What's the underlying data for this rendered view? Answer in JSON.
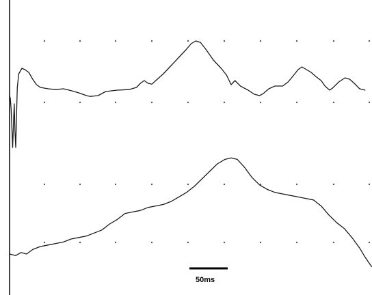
{
  "chart_data": {
    "type": "line",
    "title": "",
    "xlabel": "",
    "ylabel": "",
    "grid": "dotted",
    "legend": "none",
    "x_unit": "ms",
    "xlim": [
      0,
      500
    ],
    "scale_bar": {
      "value": 50,
      "unit": "ms",
      "label": "50ms"
    },
    "series": [
      {
        "values": [
          [
            0,
            0.0
          ],
          [
            1,
            -0.1
          ],
          [
            2,
            -0.5
          ],
          [
            3,
            -1.2
          ],
          [
            4,
            -1.9
          ],
          [
            5,
            -1.1
          ],
          [
            6,
            -0.3
          ],
          [
            7,
            -1.3
          ],
          [
            8,
            -1.9
          ],
          [
            9,
            -0.8
          ],
          [
            10,
            0.3
          ],
          [
            12,
            0.8
          ],
          [
            16,
            1.0
          ],
          [
            20,
            0.95
          ],
          [
            25,
            0.85
          ],
          [
            30,
            0.6
          ],
          [
            35,
            0.4
          ],
          [
            40,
            0.3
          ],
          [
            50,
            0.25
          ],
          [
            60,
            0.22
          ],
          [
            70,
            0.25
          ],
          [
            80,
            0.18
          ],
          [
            90,
            0.1
          ],
          [
            100,
            0.0
          ],
          [
            105,
            -0.03
          ],
          [
            115,
            0.0
          ],
          [
            125,
            0.15
          ],
          [
            140,
            0.2
          ],
          [
            155,
            0.22
          ],
          [
            165,
            0.3
          ],
          [
            170,
            0.45
          ],
          [
            175,
            0.55
          ],
          [
            180,
            0.45
          ],
          [
            185,
            0.42
          ],
          [
            190,
            0.55
          ],
          [
            200,
            0.8
          ],
          [
            210,
            1.1
          ],
          [
            220,
            1.4
          ],
          [
            230,
            1.7
          ],
          [
            236,
            1.9
          ],
          [
            242,
            2.0
          ],
          [
            248,
            1.95
          ],
          [
            255,
            1.7
          ],
          [
            265,
            1.3
          ],
          [
            275,
            1.0
          ],
          [
            282,
            0.75
          ],
          [
            288,
            0.4
          ],
          [
            293,
            0.55
          ],
          [
            300,
            0.35
          ],
          [
            310,
            0.2
          ],
          [
            318,
            0.05
          ],
          [
            325,
            0.0
          ],
          [
            330,
            0.08
          ],
          [
            337,
            0.25
          ],
          [
            345,
            0.35
          ],
          [
            355,
            0.35
          ],
          [
            362,
            0.5
          ],
          [
            368,
            0.7
          ],
          [
            375,
            0.95
          ],
          [
            380,
            1.05
          ],
          [
            386,
            0.95
          ],
          [
            392,
            0.85
          ],
          [
            398,
            0.7
          ],
          [
            405,
            0.55
          ],
          [
            410,
            0.35
          ],
          [
            416,
            0.2
          ],
          [
            420,
            0.28
          ],
          [
            428,
            0.5
          ],
          [
            436,
            0.65
          ],
          [
            442,
            0.6
          ],
          [
            448,
            0.45
          ],
          [
            455,
            0.25
          ],
          [
            462,
            0.2
          ]
        ]
      },
      {
        "values": [
          [
            0,
            0.0
          ],
          [
            8,
            -0.05
          ],
          [
            15,
            0.05
          ],
          [
            22,
            0.0
          ],
          [
            30,
            0.15
          ],
          [
            40,
            0.25
          ],
          [
            50,
            0.3
          ],
          [
            60,
            0.35
          ],
          [
            70,
            0.4
          ],
          [
            80,
            0.5
          ],
          [
            90,
            0.55
          ],
          [
            100,
            0.6
          ],
          [
            110,
            0.7
          ],
          [
            120,
            0.8
          ],
          [
            130,
            1.0
          ],
          [
            140,
            1.15
          ],
          [
            150,
            1.35
          ],
          [
            160,
            1.4
          ],
          [
            170,
            1.45
          ],
          [
            180,
            1.55
          ],
          [
            190,
            1.6
          ],
          [
            200,
            1.65
          ],
          [
            210,
            1.75
          ],
          [
            220,
            1.9
          ],
          [
            230,
            2.05
          ],
          [
            240,
            2.25
          ],
          [
            250,
            2.5
          ],
          [
            260,
            2.75
          ],
          [
            270,
            3.0
          ],
          [
            280,
            3.15
          ],
          [
            288,
            3.2
          ],
          [
            296,
            3.15
          ],
          [
            305,
            2.9
          ],
          [
            315,
            2.55
          ],
          [
            325,
            2.3
          ],
          [
            335,
            2.15
          ],
          [
            345,
            2.05
          ],
          [
            355,
            2.0
          ],
          [
            365,
            1.95
          ],
          [
            375,
            1.9
          ],
          [
            385,
            1.85
          ],
          [
            395,
            1.8
          ],
          [
            405,
            1.6
          ],
          [
            415,
            1.3
          ],
          [
            425,
            1.05
          ],
          [
            435,
            0.85
          ],
          [
            445,
            0.55
          ],
          [
            455,
            0.2
          ],
          [
            462,
            -0.1
          ],
          [
            470,
            -0.4
          ],
          [
            478,
            -0.55
          ]
        ]
      }
    ]
  }
}
